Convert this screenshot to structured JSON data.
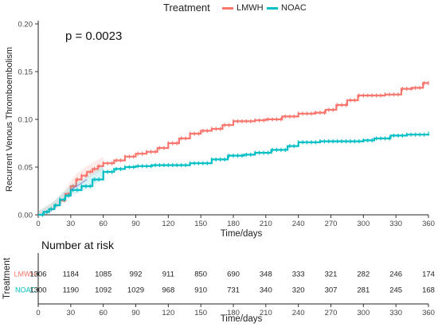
{
  "legend": {
    "title": "Treatment",
    "items": [
      {
        "label": "LMWH",
        "color": "#F8766D"
      },
      {
        "label": "NOAC",
        "color": "#00BFC4"
      }
    ]
  },
  "chart_data": {
    "type": "line",
    "subtype": "kaplan-meier cumulative incidence",
    "annotation": "p = 0.0023",
    "xlabel": "Time/days",
    "ylabel": "Recurrent Venous Thromboembolism",
    "xlim": [
      0,
      360
    ],
    "ylim": [
      0,
      0.2
    ],
    "xticks": [
      0,
      30,
      60,
      90,
      120,
      150,
      180,
      210,
      240,
      270,
      300,
      330,
      360
    ],
    "yticks": [
      0.0,
      0.05,
      0.1,
      0.15,
      0.2
    ],
    "ytick_labels": [
      "0.00",
      "0.05",
      "0.10",
      "0.15",
      "0.20"
    ],
    "grid": false,
    "legend_position": "top",
    "series": [
      {
        "name": "LMWH",
        "color": "#F8766D",
        "points": [
          [
            0,
            0
          ],
          [
            5,
            0.003
          ],
          [
            10,
            0.006
          ],
          [
            15,
            0.01
          ],
          [
            20,
            0.015
          ],
          [
            25,
            0.022
          ],
          [
            30,
            0.03
          ],
          [
            35,
            0.037
          ],
          [
            40,
            0.041
          ],
          [
            45,
            0.045
          ],
          [
            50,
            0.048
          ],
          [
            55,
            0.051
          ],
          [
            60,
            0.054
          ],
          [
            70,
            0.057
          ],
          [
            80,
            0.061
          ],
          [
            90,
            0.064
          ],
          [
            100,
            0.066
          ],
          [
            110,
            0.07
          ],
          [
            120,
            0.075
          ],
          [
            130,
            0.08
          ],
          [
            140,
            0.085
          ],
          [
            150,
            0.088
          ],
          [
            160,
            0.09
          ],
          [
            170,
            0.094
          ],
          [
            180,
            0.098
          ],
          [
            200,
            0.099
          ],
          [
            210,
            0.1
          ],
          [
            225,
            0.103
          ],
          [
            240,
            0.106
          ],
          [
            255,
            0.107
          ],
          [
            265,
            0.11
          ],
          [
            275,
            0.115
          ],
          [
            285,
            0.12
          ],
          [
            295,
            0.125
          ],
          [
            320,
            0.126
          ],
          [
            335,
            0.132
          ],
          [
            345,
            0.133
          ],
          [
            355,
            0.138
          ],
          [
            360,
            0.138
          ]
        ]
      },
      {
        "name": "NOAC",
        "color": "#00BFC4",
        "points": [
          [
            0,
            0
          ],
          [
            5,
            0.003
          ],
          [
            10,
            0.006
          ],
          [
            15,
            0.01
          ],
          [
            20,
            0.016
          ],
          [
            25,
            0.02
          ],
          [
            30,
            0.026
          ],
          [
            40,
            0.03
          ],
          [
            50,
            0.037
          ],
          [
            60,
            0.045
          ],
          [
            70,
            0.048
          ],
          [
            80,
            0.05
          ],
          [
            90,
            0.051
          ],
          [
            105,
            0.052
          ],
          [
            120,
            0.052
          ],
          [
            140,
            0.054
          ],
          [
            160,
            0.058
          ],
          [
            175,
            0.062
          ],
          [
            190,
            0.063
          ],
          [
            200,
            0.065
          ],
          [
            215,
            0.068
          ],
          [
            230,
            0.072
          ],
          [
            240,
            0.076
          ],
          [
            260,
            0.077
          ],
          [
            300,
            0.078
          ],
          [
            310,
            0.08
          ],
          [
            325,
            0.083
          ],
          [
            340,
            0.084
          ],
          [
            360,
            0.085
          ]
        ]
      }
    ]
  },
  "risk_table": {
    "title": "Number at risk",
    "ylabel": "Treatment",
    "xlabel": "Time/days",
    "times": [
      0,
      30,
      60,
      90,
      120,
      150,
      180,
      210,
      240,
      270,
      300,
      330,
      360
    ],
    "rows": [
      {
        "label": "LMWH",
        "color": "#F8766D",
        "values": [
          1306,
          1184,
          1085,
          992,
          911,
          850,
          690,
          348,
          333,
          321,
          282,
          246,
          174
        ]
      },
      {
        "label": "NOAC",
        "color": "#00BFC4",
        "values": [
          1300,
          1190,
          1092,
          1029,
          968,
          910,
          731,
          340,
          320,
          307,
          281,
          245,
          168
        ]
      }
    ]
  }
}
